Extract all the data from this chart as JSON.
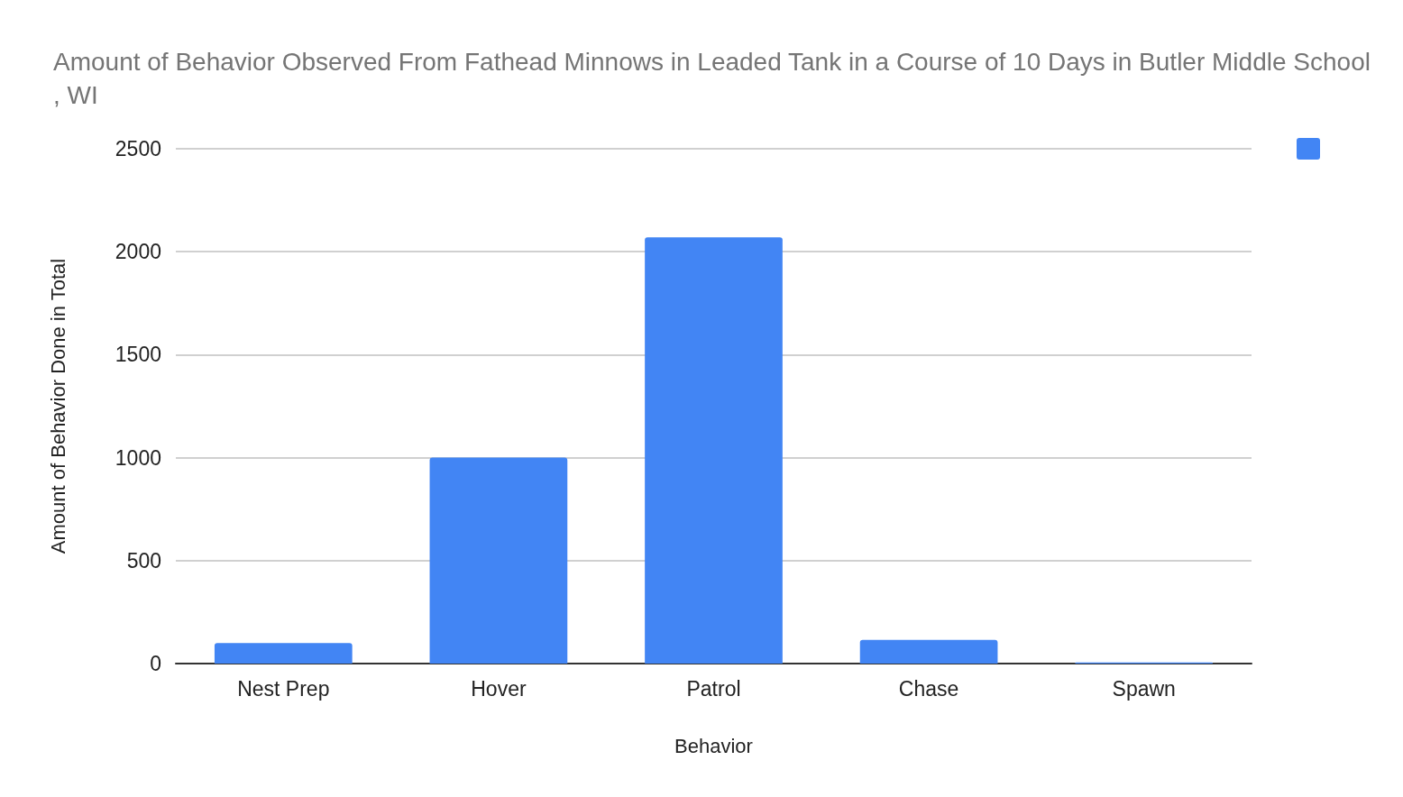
{
  "chart_data": {
    "type": "bar",
    "title": "Amount of Behavior Observed From Fathead Minnows in Leaded Tank in a Course of 10 Days in Butler Middle School, WI",
    "xlabel": "Behavior",
    "ylabel": "Amount of Behavior Done in Total",
    "categories": [
      "Nest Prep",
      "Hover",
      "Patrol",
      "Chase",
      "Spawn"
    ],
    "series": [
      {
        "color": "#4285f4",
        "values": [
          100,
          1000,
          2070,
          115,
          5
        ]
      }
    ],
    "ylim": [
      0,
      2500
    ],
    "yticks": [
      0,
      500,
      1000,
      1500,
      2000,
      2500
    ],
    "grid": "y"
  }
}
